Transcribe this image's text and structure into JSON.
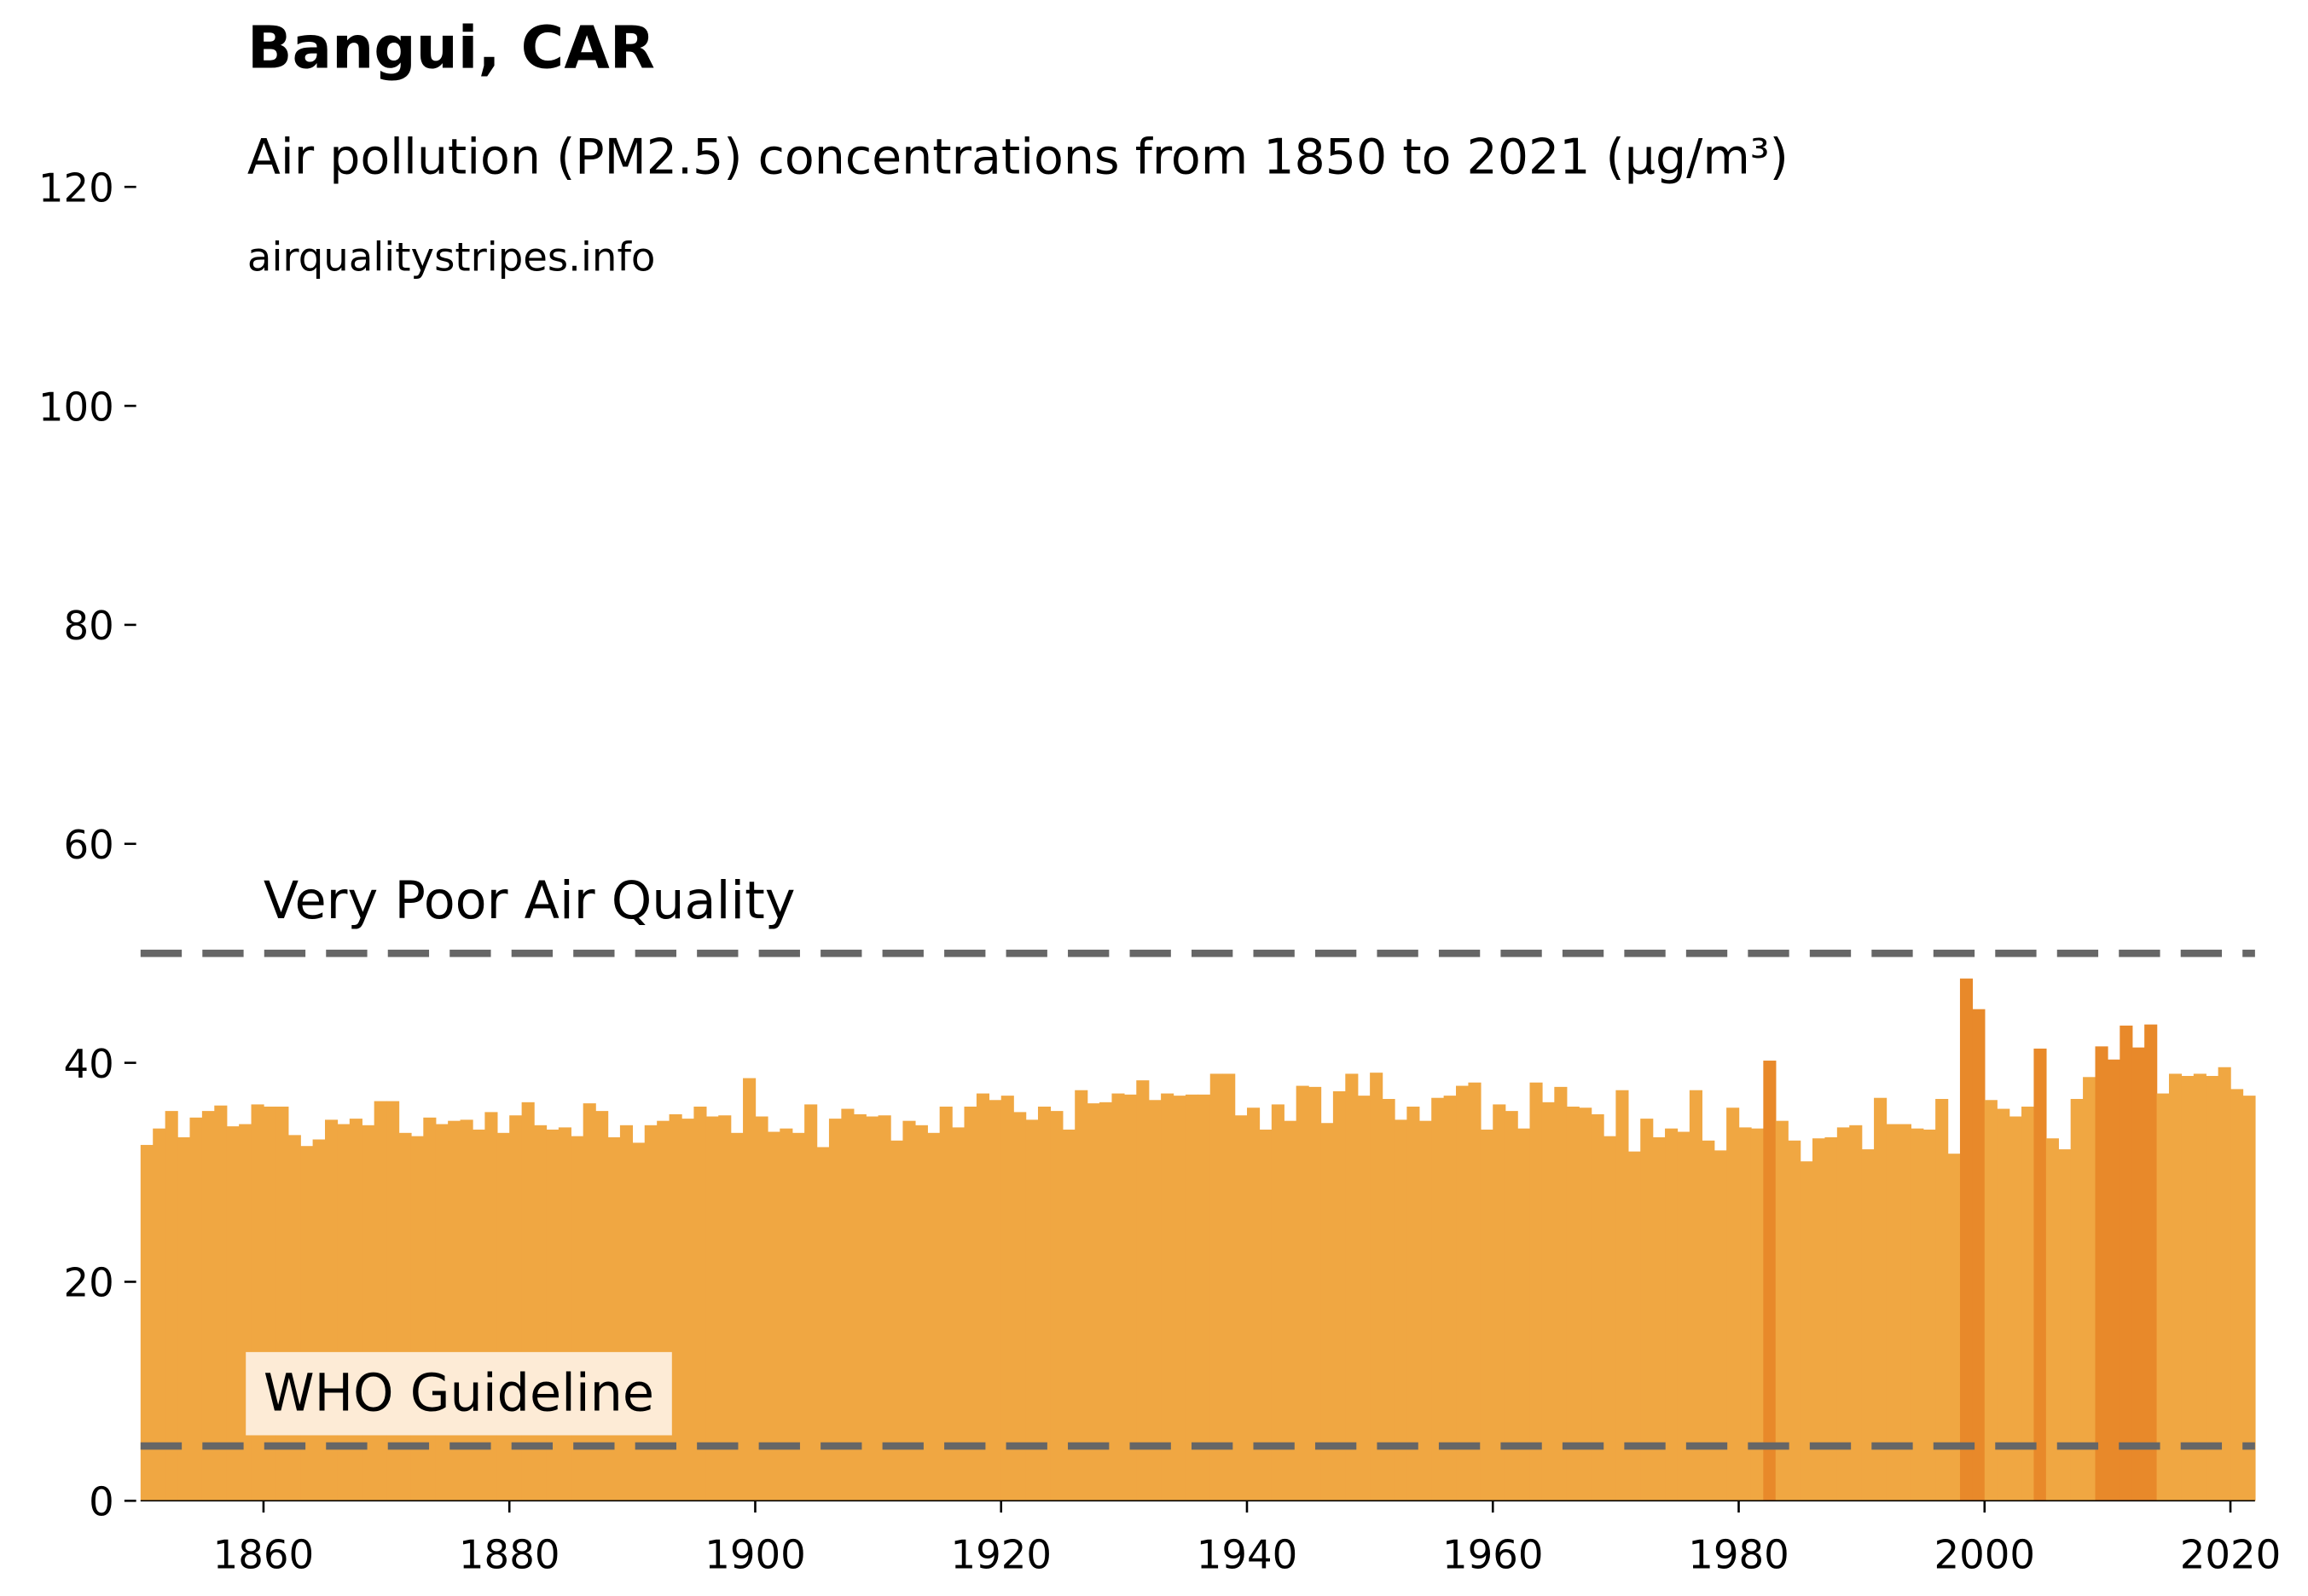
{
  "chart_data": {
    "type": "bar",
    "title": "Bangui, CAR",
    "subtitle": "Air pollution (PM2.5) concentrations from 1850 to 2021 (µg/m³)",
    "source": "airqualitystripes.info",
    "x": [
      1850,
      1851,
      1852,
      1853,
      1854,
      1855,
      1856,
      1857,
      1858,
      1859,
      1860,
      1861,
      1862,
      1863,
      1864,
      1865,
      1866,
      1867,
      1868,
      1869,
      1870,
      1871,
      1872,
      1873,
      1874,
      1875,
      1876,
      1877,
      1878,
      1879,
      1880,
      1881,
      1882,
      1883,
      1884,
      1885,
      1886,
      1887,
      1888,
      1889,
      1890,
      1891,
      1892,
      1893,
      1894,
      1895,
      1896,
      1897,
      1898,
      1899,
      1900,
      1901,
      1902,
      1903,
      1904,
      1905,
      1906,
      1907,
      1908,
      1909,
      1910,
      1911,
      1912,
      1913,
      1914,
      1915,
      1916,
      1917,
      1918,
      1919,
      1920,
      1921,
      1922,
      1923,
      1924,
      1925,
      1926,
      1927,
      1928,
      1929,
      1930,
      1931,
      1932,
      1933,
      1934,
      1935,
      1936,
      1937,
      1938,
      1939,
      1940,
      1941,
      1942,
      1943,
      1944,
      1945,
      1946,
      1947,
      1948,
      1949,
      1950,
      1951,
      1952,
      1953,
      1954,
      1955,
      1956,
      1957,
      1958,
      1959,
      1960,
      1961,
      1962,
      1963,
      1964,
      1965,
      1966,
      1967,
      1968,
      1969,
      1970,
      1971,
      1972,
      1973,
      1974,
      1975,
      1976,
      1977,
      1978,
      1979,
      1980,
      1981,
      1982,
      1983,
      1984,
      1985,
      1986,
      1987,
      1988,
      1989,
      1990,
      1991,
      1992,
      1993,
      1994,
      1995,
      1996,
      1997,
      1998,
      1999,
      2000,
      2001,
      2002,
      2003,
      2004,
      2005,
      2006,
      2007,
      2008,
      2009,
      2010,
      2011,
      2012,
      2013,
      2014,
      2015,
      2016,
      2017,
      2018,
      2019,
      2020,
      2021
    ],
    "values": [
      32.5,
      34,
      35.6,
      33.2,
      35,
      35.6,
      36.1,
      34.2,
      34.4,
      36.2,
      36,
      36,
      33.4,
      32.4,
      33,
      34.8,
      34.4,
      34.9,
      34.3,
      36.5,
      36.5,
      33.6,
      33.3,
      35,
      34.4,
      34.7,
      34.8,
      33.9,
      35.5,
      33.6,
      35.2,
      36.4,
      34.3,
      33.9,
      34.1,
      33.3,
      36.3,
      35.6,
      33.2,
      34.3,
      32.7,
      34.3,
      34.7,
      35.3,
      34.9,
      36,
      35.1,
      35.2,
      33.6,
      38.6,
      35.1,
      33.7,
      34,
      33.6,
      36.2,
      32.3,
      34.9,
      35.8,
      35.3,
      35.1,
      35.2,
      32.9,
      34.7,
      34.3,
      33.6,
      36,
      34.1,
      36,
      37.2,
      36.6,
      37,
      35.5,
      34.8,
      36,
      35.6,
      33.9,
      37.5,
      36.3,
      36.4,
      37.2,
      37.1,
      38.4,
      36.6,
      37.2,
      37,
      37.1,
      37.1,
      39,
      39,
      35.2,
      35.9,
      33.9,
      36.2,
      34.7,
      37.9,
      37.8,
      34.5,
      37.4,
      39,
      37,
      39.1,
      36.7,
      34.8,
      36,
      34.7,
      36.8,
      37,
      37.9,
      38.2,
      33.9,
      36.2,
      35.6,
      34,
      38.2,
      36.4,
      37.8,
      36,
      35.9,
      35.3,
      33.3,
      37.5,
      31.9,
      34.9,
      33.2,
      34,
      33.7,
      37.5,
      32.9,
      32,
      35.9,
      34.1,
      34,
      40.2,
      34.7,
      32.9,
      31,
      33.1,
      33.2,
      34.1,
      34.3,
      32.1,
      36.8,
      34.4,
      34.4,
      34,
      33.9,
      36.7,
      31.7,
      47.7,
      44.9,
      36.6,
      35.8,
      35.1,
      36,
      41.3,
      33.1,
      32.1,
      36.7,
      38.7,
      41.5,
      40.3,
      43.4,
      41.4,
      43.5,
      37.2,
      39,
      38.8,
      39,
      38.8,
      39.6,
      37.6,
      37
    ],
    "color": "#f0a742",
    "highlight": {
      "above": 40,
      "color": "#e8892a"
    },
    "xlim": [
      1850,
      2022
    ],
    "xticks": [
      1860,
      1880,
      1900,
      1920,
      1940,
      1960,
      1980,
      2000,
      2020
    ],
    "ylim": [
      0,
      120
    ],
    "yticks": [
      0,
      20,
      40,
      60,
      80,
      100,
      120
    ],
    "reference_lines": [
      {
        "value": 50,
        "label": "Very Poor Air Quality"
      },
      {
        "value": 5,
        "label": "WHO Guideline"
      }
    ]
  }
}
